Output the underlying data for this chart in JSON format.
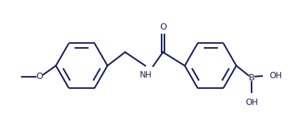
{
  "bg_color": "#ffffff",
  "line_color": "#1c1c5e",
  "line_width": 1.6,
  "figsize": [
    4.35,
    1.76
  ],
  "dpi": 100,
  "font_size": 8.5,
  "xlim": [
    -0.8,
    10.8
  ],
  "ylim": [
    -2.5,
    2.5
  ]
}
